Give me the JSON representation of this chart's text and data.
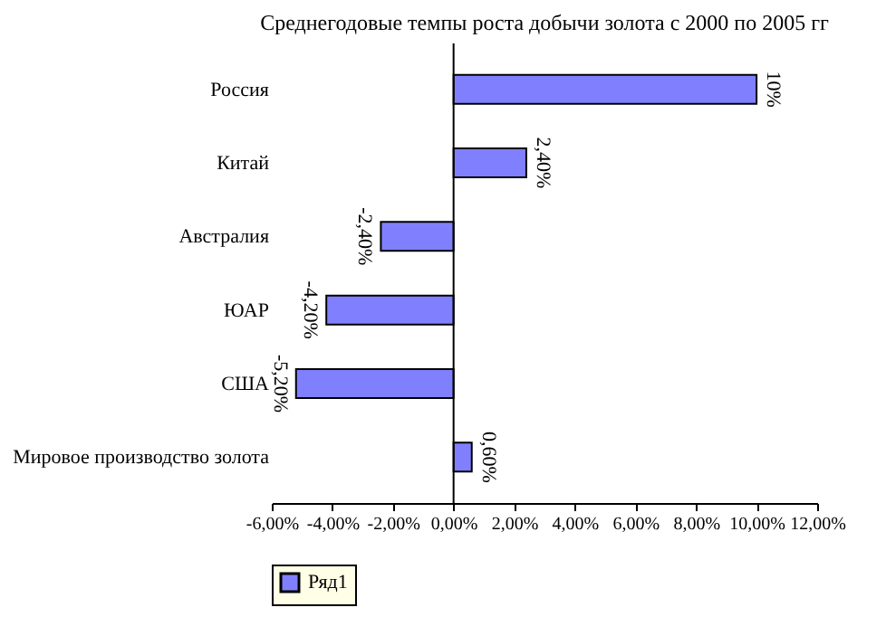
{
  "chart_data": {
    "type": "bar",
    "orientation": "horizontal",
    "title": "Среднегодовые темпы роста добычи золота с 2000 по 2005 гг",
    "categories": [
      "Россия",
      "Китай",
      "Австралия",
      "ЮАР",
      "США",
      "Мировое производство золота"
    ],
    "series": [
      {
        "name": "Ряд1",
        "color": "#8080ff",
        "values": [
          10,
          2.4,
          -2.4,
          -4.2,
          -5.2,
          0.6
        ],
        "value_labels": [
          "10%",
          "2,40%",
          "-2,40%",
          "-4,20%",
          "-5,20%",
          "0,60%"
        ]
      }
    ],
    "xlim": [
      -6,
      12
    ],
    "xticks": [
      {
        "value": -6,
        "label": "-6,00%"
      },
      {
        "value": -4,
        "label": "-4,00%"
      },
      {
        "value": -2,
        "label": "-2,00%"
      },
      {
        "value": 0,
        "label": "0,00%"
      },
      {
        "value": 2,
        "label": "2,00%"
      },
      {
        "value": 4,
        "label": "4,00%"
      },
      {
        "value": 6,
        "label": "6,00%"
      },
      {
        "value": 8,
        "label": "8,00%"
      },
      {
        "value": 10,
        "label": "10,00%"
      },
      {
        "value": 12,
        "label": "12,00%"
      }
    ],
    "legend": "bottom"
  }
}
